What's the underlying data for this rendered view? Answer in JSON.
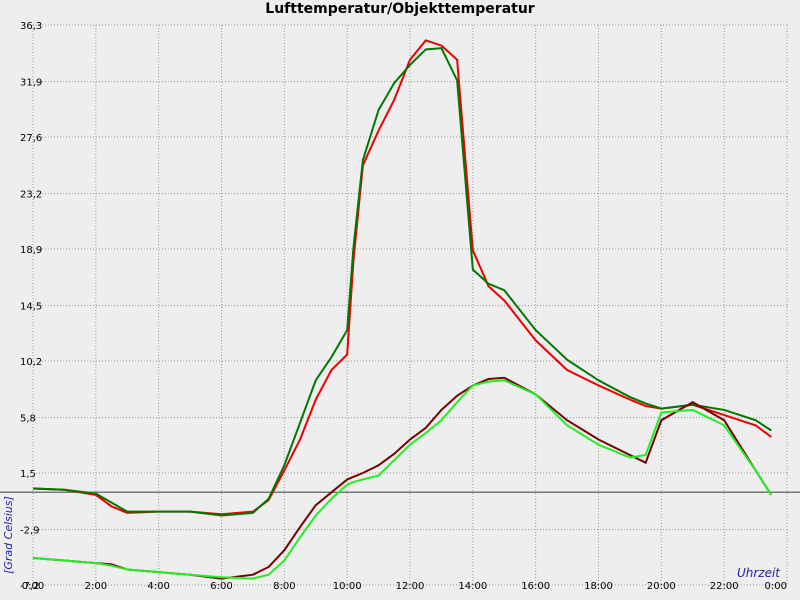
{
  "chart_data": {
    "type": "line",
    "title": "Lufttemperatur/Objekttemperatur",
    "y_label": "[Grad Celsius]",
    "x_label": "Uhrzeit",
    "x": [
      0,
      1,
      2,
      2.5,
      3,
      4,
      5,
      6,
      7,
      7.5,
      8,
      8.5,
      9,
      9.5,
      10,
      10.2,
      10.5,
      11,
      11.5,
      12,
      12.5,
      13,
      13.5,
      14,
      14.5,
      15,
      16,
      17,
      18,
      19,
      19.5,
      20,
      21,
      22,
      23,
      23.5
    ],
    "series": [
      {
        "color": "#ee0000",
        "values": [
          0.3,
          0.2,
          -0.2,
          -1.1,
          -1.6,
          -1.5,
          -1.5,
          -1.7,
          -1.5,
          -0.6,
          1.7,
          4.1,
          7.2,
          9.5,
          10.7,
          18.0,
          25.4,
          28.1,
          30.5,
          33.6,
          35.1,
          34.7,
          33.6,
          18.8,
          16.0,
          14.9,
          11.8,
          9.5,
          8.3,
          7.2,
          6.7,
          6.5,
          6.8,
          6.0,
          5.2,
          4.3
        ]
      },
      {
        "color": "#007700",
        "values": [
          0.3,
          0.2,
          -0.1,
          -0.8,
          -1.5,
          -1.5,
          -1.5,
          -1.8,
          -1.6,
          -0.5,
          2.1,
          5.4,
          8.7,
          10.5,
          12.6,
          19.0,
          25.8,
          29.7,
          31.8,
          33.2,
          34.4,
          34.5,
          32.0,
          17.3,
          16.2,
          15.7,
          12.6,
          10.3,
          8.7,
          7.4,
          6.9,
          6.5,
          6.8,
          6.4,
          5.6,
          4.8
        ]
      },
      {
        "color": "#770000",
        "values": [
          -5.1,
          -5.3,
          -5.5,
          -5.6,
          -6.0,
          -6.2,
          -6.4,
          -6.7,
          -6.4,
          -5.8,
          -4.5,
          -2.7,
          -1.0,
          0.0,
          1.0,
          1.2,
          1.5,
          2.1,
          3.0,
          4.1,
          5.0,
          6.4,
          7.5,
          8.3,
          8.8,
          8.9,
          7.6,
          5.6,
          4.1,
          2.9,
          2.3,
          5.6,
          7.0,
          5.6,
          1.7,
          -0.2
        ]
      },
      {
        "color": "#22ee22",
        "values": [
          -5.1,
          -5.3,
          -5.5,
          -5.7,
          -6.0,
          -6.2,
          -6.4,
          -6.6,
          -6.7,
          -6.4,
          -5.3,
          -3.5,
          -1.8,
          -0.5,
          0.6,
          0.8,
          1.0,
          1.3,
          2.5,
          3.7,
          4.6,
          5.6,
          7.0,
          8.3,
          8.6,
          8.7,
          7.6,
          5.2,
          3.7,
          2.7,
          2.9,
          6.2,
          6.4,
          5.2,
          1.7,
          -0.2
        ]
      }
    ],
    "xlim": [
      0,
      24
    ],
    "xticks": [
      {
        "value": 0,
        "label": "0:00"
      },
      {
        "value": 2,
        "label": "2:00"
      },
      {
        "value": 4,
        "label": "4:00"
      },
      {
        "value": 6,
        "label": "6:00"
      },
      {
        "value": 8,
        "label": "8:00"
      },
      {
        "value": 10,
        "label": "10:00"
      },
      {
        "value": 12,
        "label": "12:00"
      },
      {
        "value": 14,
        "label": "14:00"
      },
      {
        "value": 16,
        "label": "16:00"
      },
      {
        "value": 18,
        "label": "18:00"
      },
      {
        "value": 20,
        "label": "20:00"
      },
      {
        "value": 22,
        "label": "22:00"
      },
      {
        "value": 24,
        "label": "0:00"
      }
    ],
    "ylim": [
      -7.2,
      36.3
    ],
    "yticks": [
      {
        "value": -7.2,
        "label": "-7,2"
      },
      {
        "value": -2.9,
        "label": "-2,9"
      },
      {
        "value": 1.5,
        "label": "1,5"
      },
      {
        "value": 5.8,
        "label": "5,8"
      },
      {
        "value": 10.2,
        "label": "10,2"
      },
      {
        "value": 14.5,
        "label": "14,5"
      },
      {
        "value": 18.9,
        "label": "18,9"
      },
      {
        "value": 23.2,
        "label": "23,2"
      },
      {
        "value": 27.6,
        "label": "27,6"
      },
      {
        "value": 31.9,
        "label": "31,9"
      },
      {
        "value": 36.3,
        "label": "36,3"
      }
    ],
    "reference_line": 0,
    "grid": true
  }
}
